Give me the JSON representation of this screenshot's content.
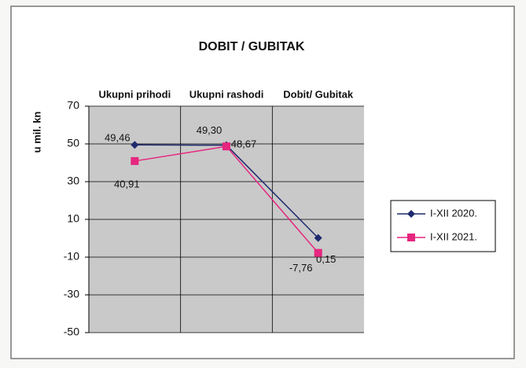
{
  "chart_data": {
    "type": "line",
    "title": "DOBIT / GUBITAK",
    "y_label": "u mil. kn",
    "categories": [
      "Ukupni prihodi",
      "Ukupni rashodi",
      "Dobit/ Gubitak"
    ],
    "series": [
      {
        "name": "I-XII 2020.",
        "color": "#1f2a6e",
        "marker": "diamond",
        "values": [
          49.46,
          49.3,
          0.15
        ],
        "value_labels": [
          "49,46",
          "49,30",
          "0,15"
        ]
      },
      {
        "name": "I-XII 2021.",
        "color": "#e6267f",
        "marker": "square",
        "values": [
          40.91,
          48.67,
          -7.76
        ],
        "value_labels": [
          "40,91",
          "48,67",
          "-7,76"
        ]
      }
    ],
    "ylim": [
      -50,
      70
    ],
    "yticks": [
      70,
      50,
      30,
      10,
      -10,
      -30,
      -50
    ],
    "grid": true,
    "legend": "right"
  }
}
